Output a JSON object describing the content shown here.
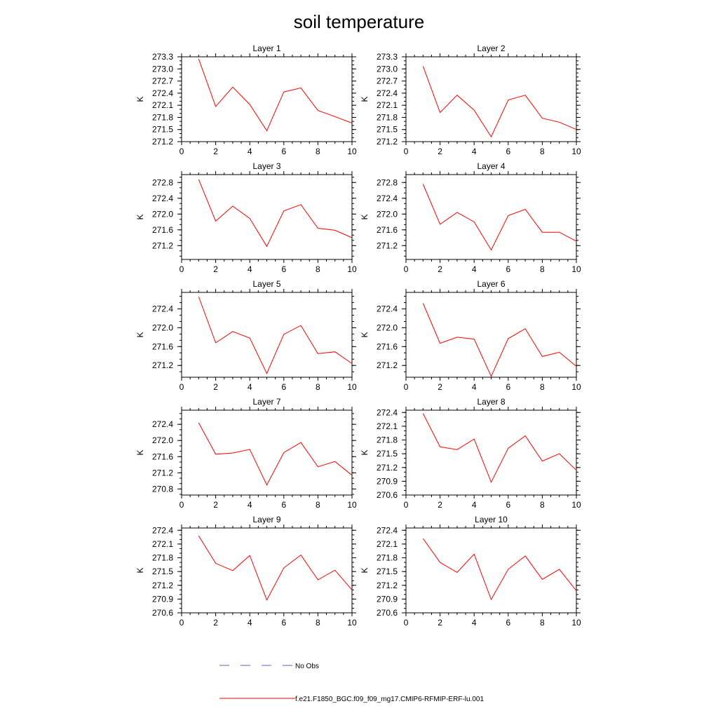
{
  "chart_data": {
    "type": "line",
    "title": "soil temperature",
    "x_ticks": [
      0,
      2,
      4,
      6,
      8,
      10
    ],
    "xlim": [
      0,
      10
    ],
    "ylabel": "K",
    "legend": [
      {
        "label": "No Obs",
        "color": "#5566bb",
        "style": "dashed"
      },
      {
        "label": "f.e21.F1850_BGC.f09_f09_mg17.CMIP6-RFMIP-ERF-lu.001",
        "color": "#ff0000",
        "style": "solid"
      }
    ],
    "panels": [
      {
        "title": "Layer 1",
        "ylim": [
          271.2,
          273.3
        ],
        "y_ticks": [
          "271.2",
          "271.5",
          "271.8",
          "272.1",
          "272.4",
          "272.7",
          "273.0",
          "273.3"
        ],
        "series": [
          {
            "name": "f.e21.F1850_BGC.f09_f09_mg17.CMIP6-RFMIP-ERF-lu.001",
            "x": [
              1,
              2,
              3,
              4,
              5,
              6,
              7,
              8,
              9,
              10
            ],
            "y": [
              273.25,
              272.07,
              272.55,
              272.12,
              271.47,
              272.43,
              272.53,
              271.97,
              271.82,
              271.66
            ]
          }
        ]
      },
      {
        "title": "Layer 2",
        "ylim": [
          271.2,
          273.3
        ],
        "y_ticks": [
          "271.2",
          "271.5",
          "271.8",
          "272.1",
          "272.4",
          "272.7",
          "273.0",
          "273.3"
        ],
        "series": [
          {
            "name": "f.e21.F1850_BGC.f09_f09_mg17.CMIP6-RFMIP-ERF-lu.001",
            "x": [
              1,
              2,
              3,
              4,
              5,
              6,
              7,
              8,
              9,
              10
            ],
            "y": [
              273.07,
              271.92,
              272.35,
              271.98,
              271.32,
              272.23,
              272.35,
              271.78,
              271.68,
              271.5
            ]
          }
        ]
      },
      {
        "title": "Layer 3",
        "ylim": [
          270.85,
          273.0
        ],
        "y_ticks": [
          "271.2",
          "271.6",
          "272.0",
          "272.4",
          "272.8"
        ],
        "series": [
          {
            "name": "f.e21.F1850_BGC.f09_f09_mg17.CMIP6-RFMIP-ERF-lu.001",
            "x": [
              1,
              2,
              3,
              4,
              5,
              6,
              7,
              8,
              9,
              10
            ],
            "y": [
              272.88,
              271.82,
              272.2,
              271.89,
              271.18,
              272.08,
              272.24,
              271.64,
              271.59,
              271.4
            ]
          }
        ]
      },
      {
        "title": "Layer 4",
        "ylim": [
          270.85,
          273.0
        ],
        "y_ticks": [
          "271.2",
          "271.6",
          "272.0",
          "272.4",
          "272.8"
        ],
        "series": [
          {
            "name": "f.e21.F1850_BGC.f09_f09_mg17.CMIP6-RFMIP-ERF-lu.001",
            "x": [
              1,
              2,
              3,
              4,
              5,
              6,
              7,
              8,
              9,
              10
            ],
            "y": [
              272.76,
              271.74,
              272.04,
              271.8,
              271.09,
              271.96,
              272.12,
              271.54,
              271.54,
              271.31
            ]
          }
        ]
      },
      {
        "title": "Layer 5",
        "ylim": [
          270.95,
          272.75
        ],
        "y_ticks": [
          "271.2",
          "271.6",
          "272.0",
          "272.4"
        ],
        "series": [
          {
            "name": "f.e21.F1850_BGC.f09_f09_mg17.CMIP6-RFMIP-ERF-lu.001",
            "x": [
              1,
              2,
              3,
              4,
              5,
              6,
              7,
              8,
              9,
              10
            ],
            "y": [
              272.66,
              271.68,
              271.92,
              271.78,
              271.03,
              271.86,
              272.05,
              271.45,
              271.49,
              271.24
            ]
          }
        ]
      },
      {
        "title": "Layer 6",
        "ylim": [
          270.95,
          272.75
        ],
        "y_ticks": [
          "271.2",
          "271.6",
          "272.0",
          "272.4"
        ],
        "series": [
          {
            "name": "f.e21.F1850_BGC.f09_f09_mg17.CMIP6-RFMIP-ERF-lu.001",
            "x": [
              1,
              2,
              3,
              4,
              5,
              6,
              7,
              8,
              9,
              10
            ],
            "y": [
              272.52,
              271.67,
              271.8,
              271.76,
              270.97,
              271.77,
              271.98,
              271.39,
              271.48,
              271.18
            ]
          }
        ]
      },
      {
        "title": "Layer 7",
        "ylim": [
          270.65,
          272.75
        ],
        "y_ticks": [
          "270.8",
          "271.2",
          "271.6",
          "272.0",
          "272.4"
        ],
        "series": [
          {
            "name": "f.e21.F1850_BGC.f09_f09_mg17.CMIP6-RFMIP-ERF-lu.001",
            "x": [
              1,
              2,
              3,
              4,
              5,
              6,
              7,
              8,
              9,
              10
            ],
            "y": [
              272.44,
              271.66,
              271.69,
              271.78,
              270.9,
              271.7,
              271.95,
              271.35,
              271.48,
              271.14
            ]
          }
        ]
      },
      {
        "title": "Layer 8",
        "ylim": [
          270.6,
          272.45
        ],
        "y_ticks": [
          "270.6",
          "270.9",
          "271.2",
          "271.5",
          "271.8",
          "272.1",
          "272.4"
        ],
        "series": [
          {
            "name": "f.e21.F1850_BGC.f09_f09_mg17.CMIP6-RFMIP-ERF-lu.001",
            "x": [
              1,
              2,
              3,
              4,
              5,
              6,
              7,
              8,
              9,
              10
            ],
            "y": [
              272.38,
              271.65,
              271.59,
              271.82,
              270.88,
              271.62,
              271.89,
              271.34,
              271.5,
              271.14
            ]
          }
        ]
      },
      {
        "title": "Layer 9",
        "ylim": [
          270.6,
          272.45
        ],
        "y_ticks": [
          "270.6",
          "270.9",
          "271.2",
          "271.5",
          "271.8",
          "272.1",
          "272.4"
        ],
        "series": [
          {
            "name": "f.e21.F1850_BGC.f09_f09_mg17.CMIP6-RFMIP-ERF-lu.001",
            "x": [
              1,
              2,
              3,
              4,
              5,
              6,
              7,
              8,
              9,
              10
            ],
            "y": [
              272.28,
              271.68,
              271.52,
              271.85,
              270.88,
              271.58,
              271.86,
              271.32,
              271.53,
              271.1
            ]
          }
        ]
      },
      {
        "title": "Layer 10",
        "ylim": [
          270.6,
          272.45
        ],
        "y_ticks": [
          "270.6",
          "270.9",
          "271.2",
          "271.5",
          "271.8",
          "272.1",
          "272.4"
        ],
        "series": [
          {
            "name": "f.e21.F1850_BGC.f09_f09_mg17.CMIP6-RFMIP-ERF-lu.001",
            "x": [
              1,
              2,
              3,
              4,
              5,
              6,
              7,
              8,
              9,
              10
            ],
            "y": [
              272.22,
              271.7,
              271.48,
              271.88,
              270.89,
              271.55,
              271.84,
              271.33,
              271.55,
              271.08
            ]
          }
        ]
      }
    ]
  }
}
